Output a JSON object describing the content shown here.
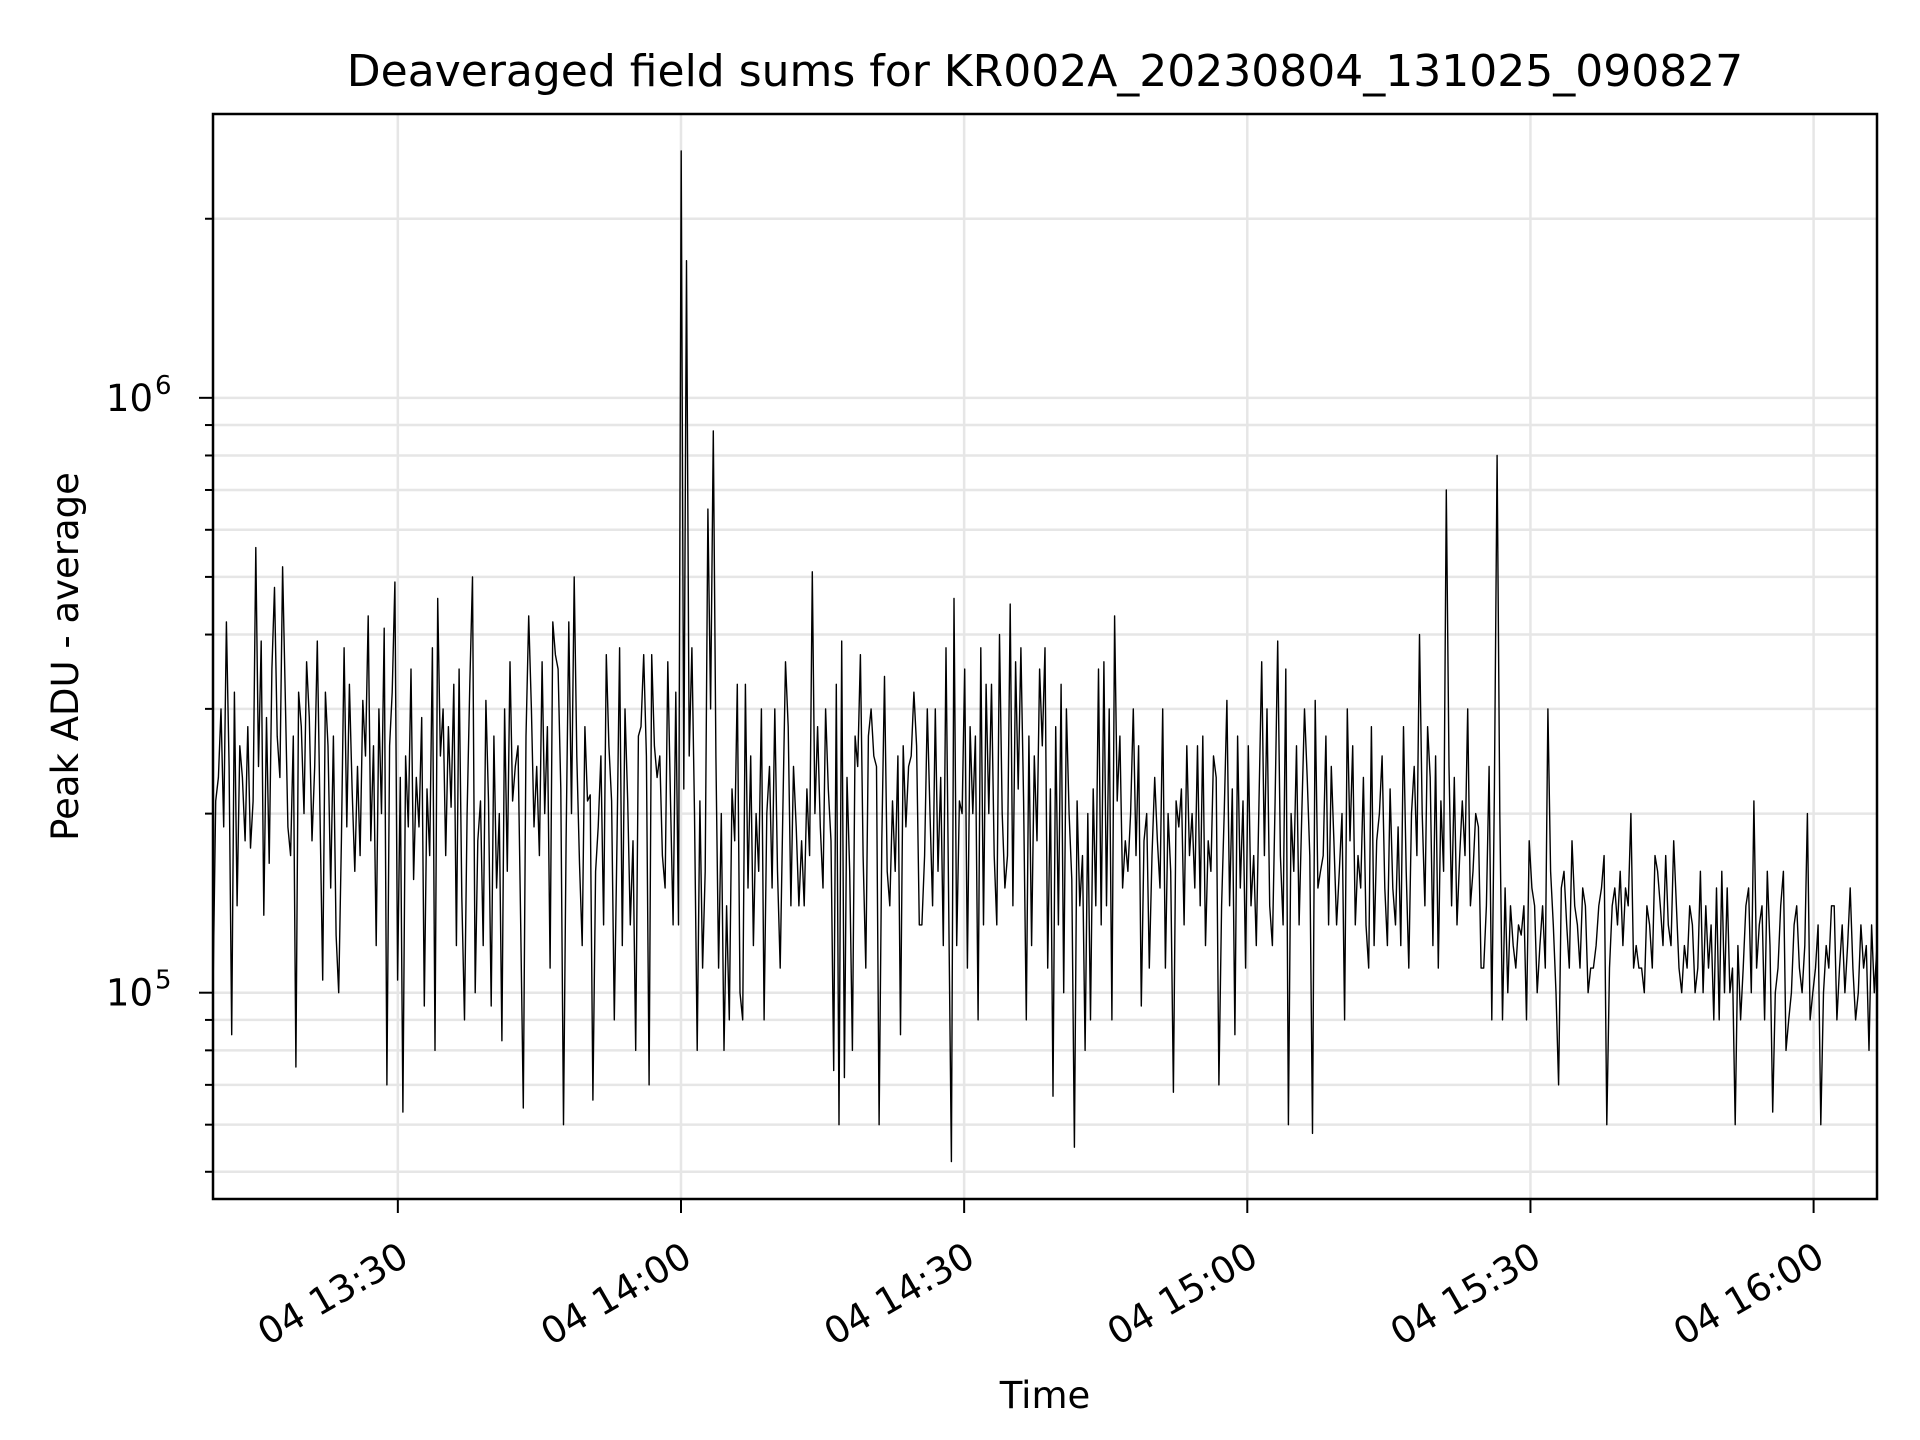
{
  "chart_data": {
    "type": "line",
    "title": "Deaveraged field sums for KR002A_20230804_131025_090827",
    "xlabel": "Time",
    "ylabel": "Peak ADU - average",
    "x_start": "2023-08-04 13:10:25",
    "x_end": "2023-08-04 16:06:43",
    "x_tick_labels": [
      "04 13:30",
      "04 14:00",
      "04 14:30",
      "04 15:00",
      "04 15:30",
      "04 16:00"
    ],
    "y_scale": "log",
    "ylim": [
      45000,
      3000000
    ],
    "y_tick_labels": [
      {
        "base": "10",
        "exp": "5"
      },
      {
        "base": "10",
        "exp": "6"
      }
    ],
    "grid": true,
    "line_color": "#000000",
    "series": [
      {
        "values": [
          100000,
          210000,
          230000,
          300000,
          190000,
          420000,
          240000,
          85000,
          320000,
          140000,
          260000,
          230000,
          180000,
          280000,
          175000,
          210000,
          560000,
          240000,
          390000,
          135000,
          290000,
          165000,
          350000,
          480000,
          270000,
          230000,
          520000,
          320000,
          190000,
          170000,
          270000,
          75000,
          320000,
          280000,
          200000,
          360000,
          290000,
          180000,
          240000,
          390000,
          200000,
          105000,
          320000,
          260000,
          150000,
          270000,
          125000,
          100000,
          180000,
          380000,
          190000,
          330000,
          220000,
          160000,
          240000,
          170000,
          310000,
          250000,
          430000,
          180000,
          260000,
          120000,
          300000,
          200000,
          410000,
          70000,
          260000,
          320000,
          490000,
          105000,
          230000,
          63000,
          250000,
          190000,
          350000,
          155000,
          230000,
          190000,
          290000,
          95000,
          220000,
          170000,
          380000,
          80000,
          460000,
          250000,
          300000,
          170000,
          280000,
          205000,
          330000,
          120000,
          350000,
          145000,
          90000,
          200000,
          330000,
          500000,
          100000,
          180000,
          210000,
          120000,
          310000,
          210000,
          95000,
          270000,
          150000,
          200000,
          83000,
          300000,
          160000,
          360000,
          210000,
          240000,
          260000,
          130000,
          64000,
          270000,
          430000,
          300000,
          190000,
          240000,
          170000,
          360000,
          200000,
          280000,
          110000,
          420000,
          370000,
          350000,
          220000,
          60000,
          180000,
          420000,
          200000,
          500000,
          250000,
          165000,
          120000,
          280000,
          210000,
          215000,
          66000,
          160000,
          190000,
          250000,
          130000,
          370000,
          260000,
          210000,
          90000,
          180000,
          380000,
          120000,
          300000,
          210000,
          130000,
          180000,
          80000,
          270000,
          280000,
          370000,
          250000,
          70000,
          370000,
          260000,
          230000,
          250000,
          170000,
          150000,
          360000,
          210000,
          130000,
          320000,
          130000,
          2600000,
          220000,
          1700000,
          250000,
          380000,
          200000,
          80000,
          210000,
          110000,
          160000,
          650000,
          300000,
          880000,
          250000,
          110000,
          200000,
          80000,
          140000,
          90000,
          220000,
          180000,
          330000,
          100000,
          90000,
          330000,
          150000,
          250000,
          120000,
          200000,
          160000,
          300000,
          90000,
          200000,
          240000,
          150000,
          300000,
          160000,
          110000,
          200000,
          360000,
          280000,
          140000,
          240000,
          190000,
          140000,
          180000,
          140000,
          220000,
          170000,
          510000,
          200000,
          280000,
          190000,
          150000,
          300000,
          220000,
          180000,
          74000,
          330000,
          60000,
          390000,
          72000,
          230000,
          160000,
          80000,
          270000,
          240000,
          370000,
          170000,
          110000,
          270000,
          300000,
          250000,
          240000,
          60000,
          180000,
          340000,
          160000,
          140000,
          210000,
          160000,
          250000,
          85000,
          260000,
          190000,
          240000,
          250000,
          320000,
          260000,
          130000,
          130000,
          170000,
          300000,
          200000,
          140000,
          300000,
          160000,
          230000,
          120000,
          380000,
          140000,
          52000,
          460000,
          120000,
          210000,
          200000,
          350000,
          110000,
          280000,
          200000,
          270000,
          90000,
          380000,
          130000,
          330000,
          200000,
          330000,
          170000,
          130000,
          400000,
          200000,
          150000,
          170000,
          450000,
          140000,
          360000,
          220000,
          380000,
          210000,
          90000,
          270000,
          120000,
          250000,
          180000,
          350000,
          260000,
          380000,
          110000,
          220000,
          67000,
          280000,
          130000,
          330000,
          100000,
          300000,
          200000,
          155000,
          55000,
          210000,
          140000,
          170000,
          80000,
          200000,
          90000,
          220000,
          140000,
          350000,
          130000,
          360000,
          140000,
          300000,
          90000,
          430000,
          210000,
          270000,
          150000,
          180000,
          160000,
          200000,
          300000,
          170000,
          260000,
          95000,
          180000,
          200000,
          110000,
          170000,
          230000,
          180000,
          150000,
          300000,
          110000,
          200000,
          160000,
          68000,
          210000,
          190000,
          220000,
          130000,
          260000,
          170000,
          200000,
          150000,
          260000,
          140000,
          270000,
          120000,
          180000,
          160000,
          250000,
          230000,
          70000,
          140000,
          200000,
          310000,
          140000,
          220000,
          85000,
          270000,
          150000,
          210000,
          110000,
          260000,
          140000,
          170000,
          120000,
          210000,
          360000,
          170000,
          300000,
          140000,
          120000,
          210000,
          390000,
          170000,
          130000,
          350000,
          60000,
          200000,
          160000,
          260000,
          130000,
          200000,
          300000,
          230000,
          170000,
          58000,
          310000,
          150000,
          160000,
          170000,
          270000,
          130000,
          240000,
          180000,
          130000,
          160000,
          200000,
          90000,
          300000,
          180000,
          260000,
          130000,
          170000,
          150000,
          230000,
          130000,
          110000,
          280000,
          120000,
          180000,
          200000,
          250000,
          150000,
          120000,
          220000,
          150000,
          130000,
          190000,
          120000,
          280000,
          160000,
          110000,
          200000,
          240000,
          170000,
          400000,
          200000,
          140000,
          280000,
          230000,
          120000,
          250000,
          110000,
          210000,
          160000,
          700000,
          240000,
          140000,
          230000,
          130000,
          170000,
          210000,
          170000,
          300000,
          140000,
          160000,
          200000,
          190000,
          110000,
          110000,
          140000,
          240000,
          90000,
          220000,
          800000,
          200000,
          90000,
          150000,
          100000,
          140000,
          120000,
          110000,
          130000,
          125000,
          140000,
          90000,
          180000,
          150000,
          140000,
          100000,
          120000,
          140000,
          110000,
          300000,
          160000,
          130000,
          100000,
          70000,
          150000,
          160000,
          130000,
          110000,
          180000,
          140000,
          130000,
          110000,
          150000,
          140000,
          100000,
          110000,
          110000,
          120000,
          140000,
          150000,
          170000,
          60000,
          110000,
          140000,
          150000,
          130000,
          160000,
          120000,
          150000,
          140000,
          200000,
          110000,
          120000,
          110000,
          110000,
          100000,
          140000,
          130000,
          110000,
          170000,
          160000,
          140000,
          120000,
          170000,
          130000,
          120000,
          180000,
          140000,
          110000,
          100000,
          120000,
          110000,
          140000,
          130000,
          100000,
          110000,
          160000,
          100000,
          140000,
          110000,
          130000,
          90000,
          150000,
          90000,
          160000,
          100000,
          150000,
          100000,
          110000,
          60000,
          120000,
          90000,
          110000,
          140000,
          150000,
          100000,
          210000,
          110000,
          130000,
          140000,
          90000,
          160000,
          120000,
          63000,
          100000,
          110000,
          140000,
          160000,
          80000,
          90000,
          100000,
          130000,
          140000,
          110000,
          100000,
          120000,
          200000,
          90000,
          100000,
          110000,
          130000,
          60000,
          100000,
          120000,
          110000,
          140000,
          140000,
          90000,
          110000,
          130000,
          100000,
          120000,
          150000,
          110000,
          90000,
          100000,
          130000,
          110000,
          120000,
          80000,
          130000,
          100000,
          120000
        ]
      }
    ]
  }
}
